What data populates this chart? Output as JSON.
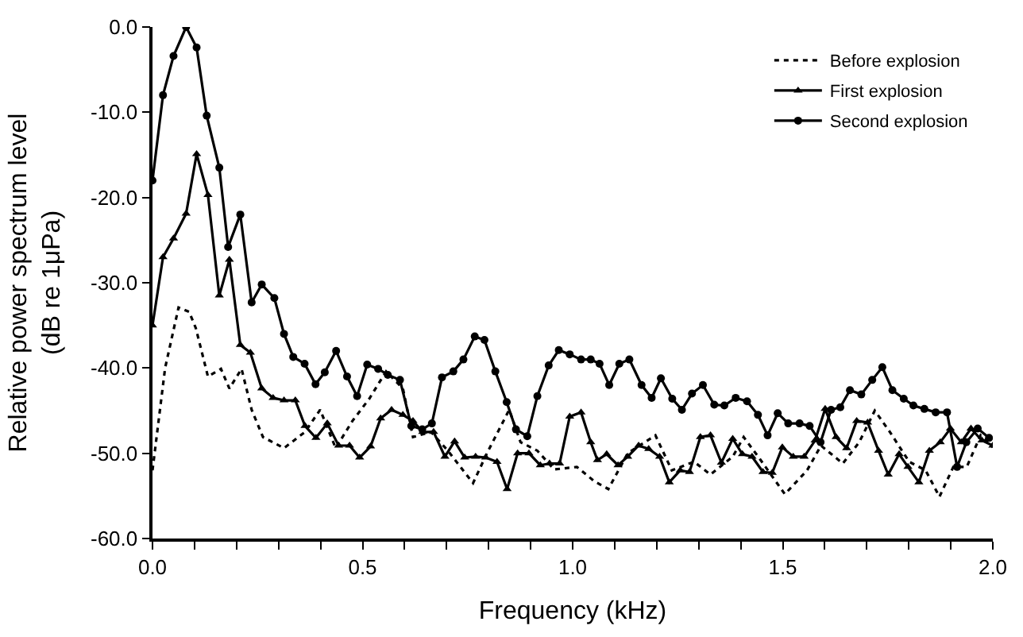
{
  "chart_data": {
    "type": "line",
    "xlabel": "Frequency (kHz)",
    "ylabel": "Relative power spectrum level\n(dB re 1μPa)",
    "xlim": [
      0,
      2.0
    ],
    "ylim": [
      -60,
      0
    ],
    "xticks": [
      {
        "value": 0,
        "label": "0.0"
      },
      {
        "value": 0.1,
        "label": null
      },
      {
        "value": 0.2,
        "label": null
      },
      {
        "value": 0.3,
        "label": null
      },
      {
        "value": 0.4,
        "label": null
      },
      {
        "value": 0.5,
        "label": "0.5"
      },
      {
        "value": 0.6,
        "label": null
      },
      {
        "value": 0.7,
        "label": null
      },
      {
        "value": 0.8,
        "label": null
      },
      {
        "value": 0.9,
        "label": null
      },
      {
        "value": 1.0,
        "label": "1.0"
      },
      {
        "value": 1.1,
        "label": null
      },
      {
        "value": 1.2,
        "label": null
      },
      {
        "value": 1.3,
        "label": null
      },
      {
        "value": 1.4,
        "label": null
      },
      {
        "value": 1.5,
        "label": "1.5"
      },
      {
        "value": 1.6,
        "label": null
      },
      {
        "value": 1.7,
        "label": null
      },
      {
        "value": 1.8,
        "label": null
      },
      {
        "value": 1.9,
        "label": null
      },
      {
        "value": 2.0,
        "label": "2.0"
      }
    ],
    "yticks": [
      {
        "value": 0,
        "label": "0.0"
      },
      {
        "value": -10,
        "label": "-10.0"
      },
      {
        "value": -20,
        "label": "-20.0"
      },
      {
        "value": -30,
        "label": "-30.0"
      },
      {
        "value": -40,
        "label": "-40.0"
      },
      {
        "value": -50,
        "label": "-50.0"
      },
      {
        "value": -60,
        "label": "-60.0"
      }
    ],
    "grid": false,
    "legend": "top right",
    "series": [
      {
        "name": "Before explosion",
        "color": "#000000",
        "marker": "none",
        "line_style": "dotted",
        "x": [
          0,
          0.03,
          0.062,
          0.087,
          0.103,
          0.132,
          0.163,
          0.183,
          0.212,
          0.236,
          0.263,
          0.313,
          0.363,
          0.399,
          0.436,
          0.476,
          0.516,
          0.556,
          0.596,
          0.62,
          0.663,
          0.703,
          0.763,
          0.796,
          0.849,
          0.876,
          0.916,
          0.956,
          1.01,
          1.052,
          1.085,
          1.131,
          1.197,
          1.236,
          1.289,
          1.328,
          1.381,
          1.407,
          1.446,
          1.505,
          1.558,
          1.591,
          1.643,
          1.682,
          1.719,
          1.755,
          1.801,
          1.84,
          1.873,
          1.906,
          1.938,
          1.971,
          2.0
        ],
        "values": [
          -52,
          -40,
          -32.9,
          -33.4,
          -35.3,
          -41,
          -40.1,
          -42.4,
          -40.1,
          -44.9,
          -48.1,
          -49.4,
          -47.5,
          -44.9,
          -49.4,
          -46.2,
          -43.6,
          -40.4,
          -42.4,
          -48.1,
          -47.5,
          -49.7,
          -53.5,
          -50,
          -44.9,
          -48.7,
          -49.7,
          -51.9,
          -51.6,
          -53.3,
          -54.2,
          -50,
          -47.9,
          -52,
          -51,
          -52.5,
          -50.4,
          -48.1,
          -50.7,
          -54.8,
          -52,
          -49.1,
          -51.2,
          -48.7,
          -45,
          -47.5,
          -51,
          -52,
          -55.1,
          -51.6,
          -51.6,
          -47.9,
          -49.3
        ]
      },
      {
        "name": "First explosion",
        "color": "#000000",
        "marker": "triangle",
        "line_style": "solid",
        "x": [
          0,
          0.025,
          0.05,
          0.08,
          0.105,
          0.132,
          0.159,
          0.183,
          0.209,
          0.233,
          0.26,
          0.287,
          0.313,
          0.34,
          0.363,
          0.389,
          0.416,
          0.443,
          0.469,
          0.493,
          0.519,
          0.543,
          0.569,
          0.596,
          0.62,
          0.643,
          0.669,
          0.696,
          0.719,
          0.743,
          0.769,
          0.793,
          0.82,
          0.844,
          0.869,
          0.896,
          0.923,
          0.945,
          0.969,
          0.993,
          1.02,
          1.043,
          1.059,
          1.081,
          1.108,
          1.131,
          1.157,
          1.181,
          1.207,
          1.23,
          1.256,
          1.278,
          1.304,
          1.328,
          1.354,
          1.381,
          1.404,
          1.427,
          1.453,
          1.475,
          1.499,
          1.525,
          1.551,
          1.577,
          1.601,
          1.627,
          1.652,
          1.676,
          1.702,
          1.728,
          1.751,
          1.777,
          1.798,
          1.824,
          1.849,
          1.875,
          1.899,
          1.925,
          1.948,
          1.974,
          2.0
        ],
        "values": [
          -35,
          -27,
          -24.8,
          -21.9,
          -14.9,
          -19.7,
          -31.5,
          -27.3,
          -37.3,
          -38.2,
          -42.4,
          -43.5,
          -43.8,
          -43.8,
          -46.8,
          -48.2,
          -46.5,
          -49.1,
          -49.1,
          -50.5,
          -49.2,
          -45.9,
          -44.9,
          -45.5,
          -46.2,
          -47.5,
          -47.5,
          -50.4,
          -48.6,
          -50.5,
          -50.4,
          -50.5,
          -51,
          -54.2,
          -50,
          -50,
          -51.4,
          -51.2,
          -51.2,
          -45.7,
          -45.2,
          -48.7,
          -50.8,
          -50.1,
          -51.4,
          -50.4,
          -49.1,
          -49.5,
          -50.4,
          -53.4,
          -52,
          -52.2,
          -48.1,
          -47.9,
          -51.1,
          -48.3,
          -50.1,
          -50.4,
          -52.2,
          -52.3,
          -49.3,
          -50.4,
          -50.4,
          -48.5,
          -44.8,
          -48.1,
          -49.4,
          -46.2,
          -46.4,
          -49.7,
          -52.5,
          -50.1,
          -51.6,
          -53.4,
          -49.7,
          -48.7,
          -47.1,
          -48.7,
          -47.1,
          -48.5,
          -49.1
        ]
      },
      {
        "name": "Second explosion",
        "color": "#000000",
        "marker": "circle",
        "line_style": "solid",
        "x": [
          0,
          0.025,
          0.05,
          0.08,
          0.105,
          0.129,
          0.159,
          0.18,
          0.209,
          0.236,
          0.26,
          0.29,
          0.313,
          0.335,
          0.362,
          0.388,
          0.41,
          0.437,
          0.463,
          0.487,
          0.511,
          0.537,
          0.56,
          0.589,
          0.616,
          0.642,
          0.665,
          0.689,
          0.716,
          0.74,
          0.767,
          0.79,
          0.816,
          0.843,
          0.865,
          0.892,
          0.916,
          0.943,
          0.967,
          0.993,
          1.02,
          1.043,
          1.064,
          1.087,
          1.111,
          1.135,
          1.164,
          1.188,
          1.21,
          1.237,
          1.26,
          1.284,
          1.31,
          1.337,
          1.361,
          1.388,
          1.415,
          1.441,
          1.464,
          1.488,
          1.513,
          1.54,
          1.564,
          1.59,
          1.615,
          1.637,
          1.66,
          1.687,
          1.713,
          1.737,
          1.761,
          1.788,
          1.811,
          1.837,
          1.864,
          1.891,
          1.915,
          1.937,
          1.964,
          1.991
        ],
        "values": [
          -18,
          -8,
          -3.4,
          0,
          -2.4,
          -10.4,
          -16.5,
          -25.8,
          -22,
          -32.3,
          -30.2,
          -31.8,
          -36,
          -38.7,
          -39.5,
          -41.9,
          -40.5,
          -38,
          -41,
          -43.3,
          -39.6,
          -40.1,
          -40.8,
          -41.4,
          -46.8,
          -47.2,
          -46.5,
          -41.1,
          -40.4,
          -39,
          -36.3,
          -36.7,
          -40.4,
          -44,
          -47.2,
          -48,
          -43.3,
          -39.7,
          -37.9,
          -38.4,
          -39,
          -39,
          -39.5,
          -42,
          -39.5,
          -39,
          -42,
          -43.5,
          -41.2,
          -43.6,
          -44.9,
          -43,
          -42,
          -44.3,
          -44.4,
          -43.5,
          -43.9,
          -45.5,
          -47.9,
          -45.3,
          -46.5,
          -46.5,
          -46.8,
          -48.7,
          -44.9,
          -44.6,
          -42.6,
          -43.1,
          -41.4,
          -39.9,
          -42.6,
          -43.6,
          -44.4,
          -44.8,
          -45.2,
          -45.2,
          -51.6,
          -48.7,
          -47.1,
          -48.2
        ]
      }
    ]
  }
}
